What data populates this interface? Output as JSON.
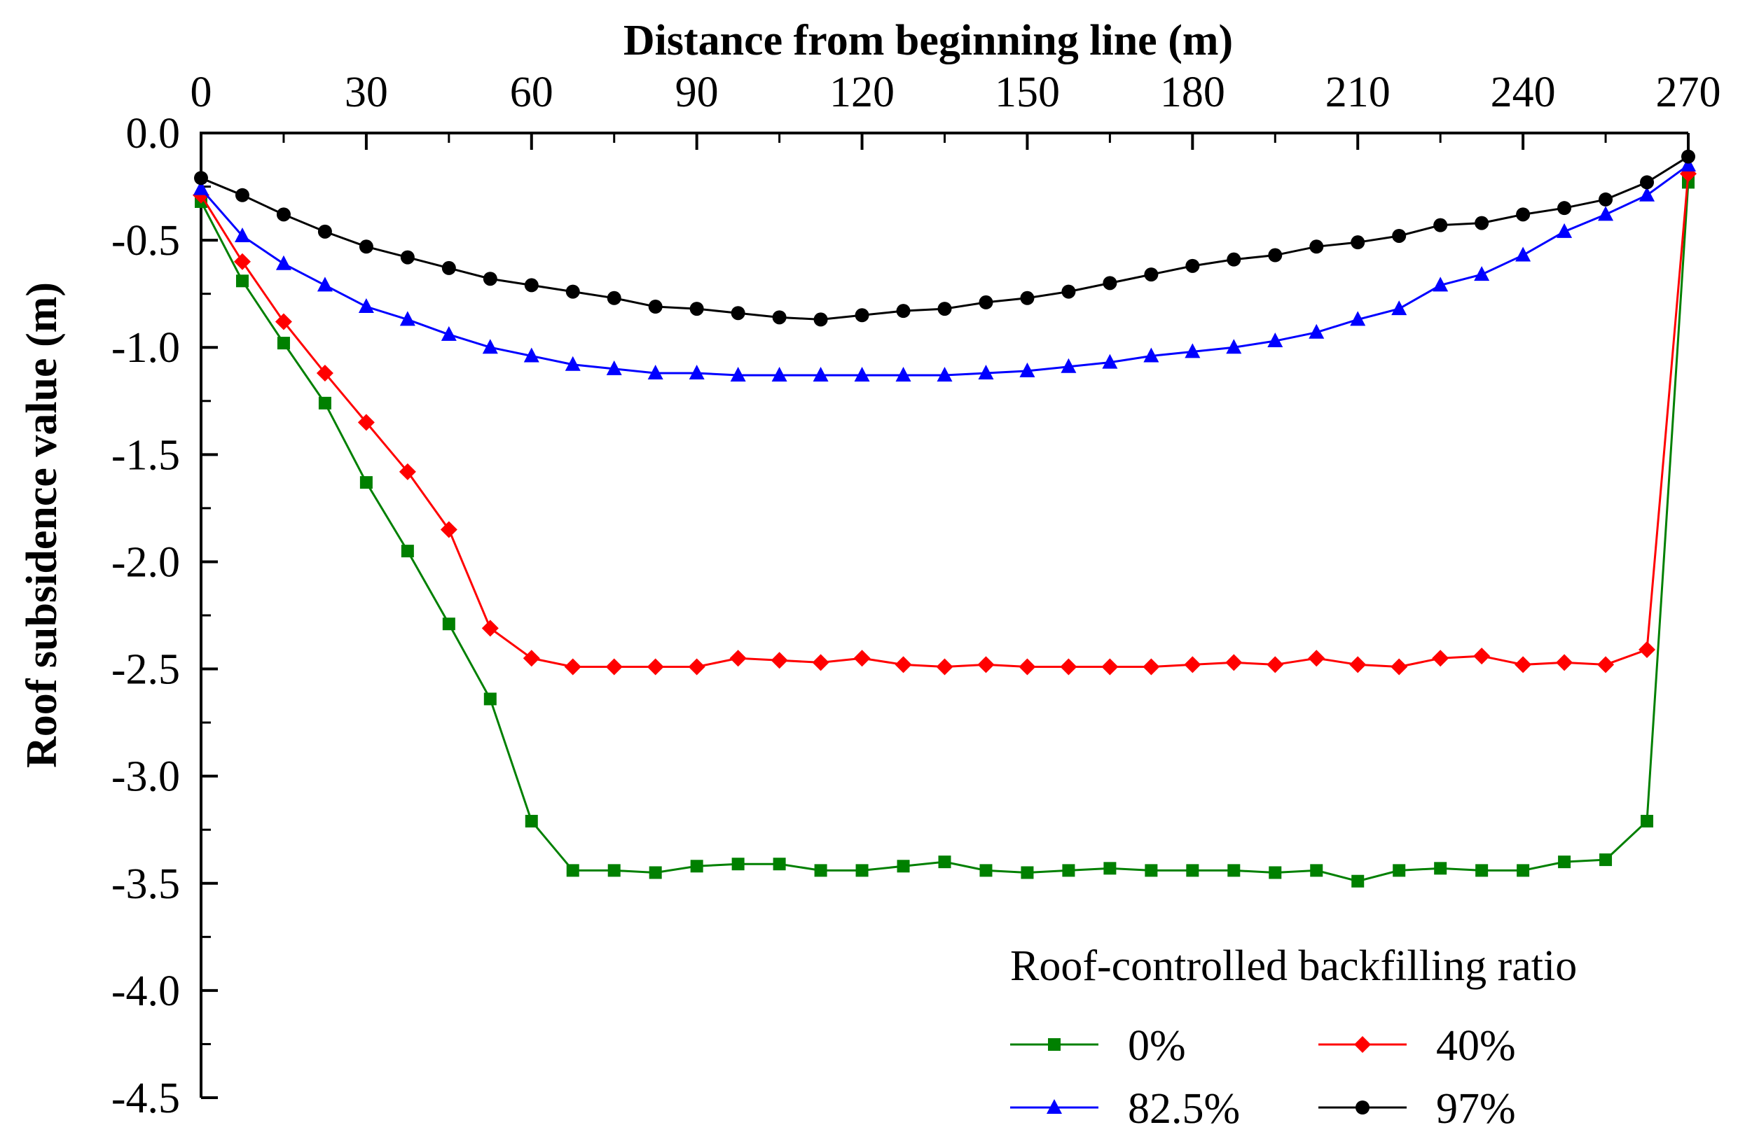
{
  "chart_data": {
    "type": "line",
    "title": "",
    "xlabel": "Distance from beginning line (m)",
    "ylabel": "Roof subsidence value (m)",
    "xlim": [
      0,
      270
    ],
    "ylim": [
      -4.5,
      0.0
    ],
    "xticks": [
      0,
      30,
      60,
      90,
      120,
      150,
      180,
      210,
      240,
      270
    ],
    "yticks": [
      0.0,
      -0.5,
      -1.0,
      -1.5,
      -2.0,
      -2.5,
      -3.0,
      -3.5,
      -4.0,
      -4.5
    ],
    "xtick_labels": [
      "0",
      "30",
      "60",
      "90",
      "120",
      "150",
      "180",
      "210",
      "240",
      "270"
    ],
    "ytick_labels": [
      "0.0",
      "-0.5",
      "-1.0",
      "-1.5",
      "-2.0",
      "-2.5",
      "-3.0",
      "-3.5",
      "-4.0",
      "-4.5"
    ],
    "grid": false,
    "x_axis_position": "top",
    "legend": {
      "title": "Roof-controlled backfilling ratio",
      "position": "bottom-right",
      "columns": 2
    },
    "x": [
      0,
      7.5,
      15,
      22.5,
      30,
      37.5,
      45,
      52.5,
      60,
      67.5,
      75,
      82.5,
      90,
      97.5,
      105,
      112.5,
      120,
      127.5,
      135,
      142.5,
      150,
      157.5,
      165,
      172.5,
      180,
      187.5,
      195,
      202.5,
      210,
      217.5,
      225,
      232.5,
      240,
      247.5,
      255,
      262.5,
      270
    ],
    "series": [
      {
        "name": "0%",
        "color": "#008000",
        "marker": "square",
        "values": [
          -0.32,
          -0.69,
          -0.98,
          -1.26,
          -1.63,
          -1.95,
          -2.29,
          -2.64,
          -3.21,
          -3.44,
          -3.44,
          -3.45,
          -3.42,
          -3.41,
          -3.41,
          -3.44,
          -3.44,
          -3.42,
          -3.4,
          -3.44,
          -3.45,
          -3.44,
          -3.43,
          -3.44,
          -3.44,
          -3.44,
          -3.45,
          -3.44,
          -3.49,
          -3.44,
          -3.43,
          -3.44,
          -3.44,
          -3.4,
          -3.39,
          -3.21,
          -0.23
        ]
      },
      {
        "name": "40%",
        "color": "#ff0000",
        "marker": "diamond",
        "values": [
          -0.29,
          -0.6,
          -0.88,
          -1.12,
          -1.35,
          -1.58,
          -1.85,
          -2.31,
          -2.45,
          -2.49,
          -2.49,
          -2.49,
          -2.49,
          -2.45,
          -2.46,
          -2.47,
          -2.45,
          -2.48,
          -2.49,
          -2.48,
          -2.49,
          -2.49,
          -2.49,
          -2.49,
          -2.48,
          -2.47,
          -2.48,
          -2.45,
          -2.48,
          -2.49,
          -2.45,
          -2.44,
          -2.48,
          -2.47,
          -2.48,
          -2.41,
          -0.19
        ]
      },
      {
        "name": "82.5%",
        "color": "#0000ff",
        "marker": "triangle",
        "values": [
          -0.26,
          -0.48,
          -0.61,
          -0.71,
          -0.81,
          -0.87,
          -0.94,
          -1.0,
          -1.04,
          -1.08,
          -1.1,
          -1.12,
          -1.12,
          -1.13,
          -1.13,
          -1.13,
          -1.13,
          -1.13,
          -1.13,
          -1.12,
          -1.11,
          -1.09,
          -1.07,
          -1.04,
          -1.02,
          -1.0,
          -0.97,
          -0.93,
          -0.87,
          -0.82,
          -0.71,
          -0.66,
          -0.57,
          -0.46,
          -0.38,
          -0.29,
          -0.15
        ]
      },
      {
        "name": "97%",
        "color": "#000000",
        "marker": "circle",
        "values": [
          -0.21,
          -0.29,
          -0.38,
          -0.46,
          -0.53,
          -0.58,
          -0.63,
          -0.68,
          -0.71,
          -0.74,
          -0.77,
          -0.81,
          -0.82,
          -0.84,
          -0.86,
          -0.87,
          -0.85,
          -0.83,
          -0.82,
          -0.79,
          -0.77,
          -0.74,
          -0.7,
          -0.66,
          -0.62,
          -0.59,
          -0.57,
          -0.53,
          -0.51,
          -0.48,
          -0.43,
          -0.42,
          -0.38,
          -0.35,
          -0.31,
          -0.23,
          -0.11
        ]
      }
    ]
  }
}
